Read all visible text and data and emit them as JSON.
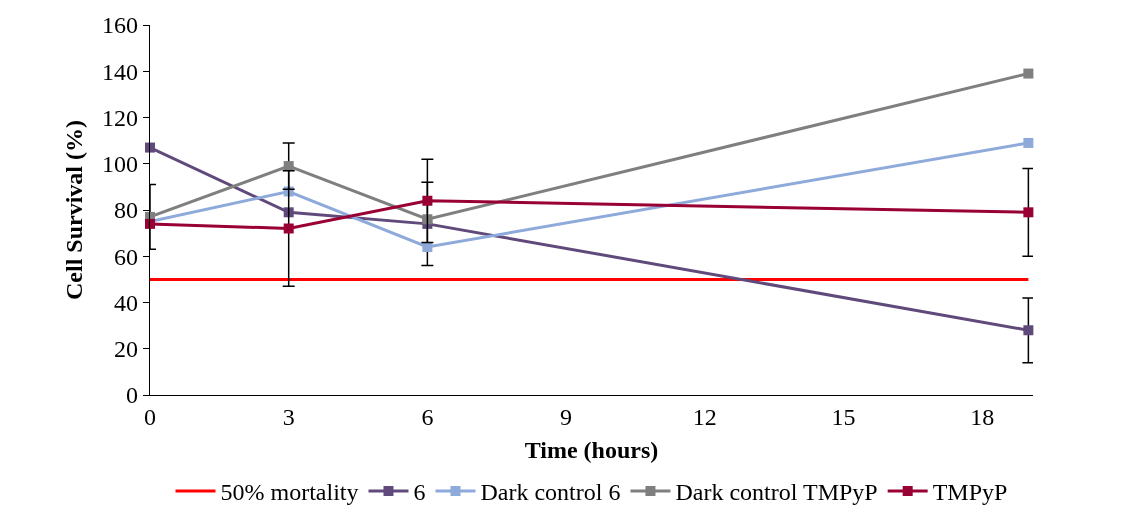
{
  "chart_data": {
    "type": "line",
    "xlabel": "Time (hours)",
    "ylabel": "Cell Survival (%)",
    "x": [
      0,
      3,
      6,
      19
    ],
    "xlim": [
      0,
      19.1
    ],
    "xticks": [
      0,
      3,
      6,
      9,
      12,
      15,
      18
    ],
    "ylim": [
      0,
      160
    ],
    "yticks": [
      0,
      20,
      40,
      60,
      80,
      100,
      120,
      140,
      160
    ],
    "grid": false,
    "legend": "bottom",
    "marker": "square",
    "line_style": "solid",
    "series": [
      {
        "name": "50% mortality",
        "color": "#ff0000",
        "x": [
          0,
          19
        ],
        "values": [
          50,
          50
        ],
        "marker": "none"
      },
      {
        "name": "6",
        "color": "#604a7b",
        "values": [
          107,
          79,
          74,
          28
        ],
        "errors": [
          null,
          null,
          18,
          14
        ]
      },
      {
        "name": "Dark control 6",
        "color": "#8eaadb",
        "values": [
          75,
          88,
          64,
          109
        ]
      },
      {
        "name": "Dark control TMPyP",
        "color": "#7f7f7f",
        "values": [
          77,
          99,
          76,
          139
        ],
        "errors": [
          14,
          10,
          null,
          null
        ]
      },
      {
        "name": "TMPyP",
        "color": "#990033",
        "values": [
          74,
          72,
          84,
          79
        ],
        "errors": [
          null,
          25,
          18,
          19
        ]
      }
    ]
  }
}
